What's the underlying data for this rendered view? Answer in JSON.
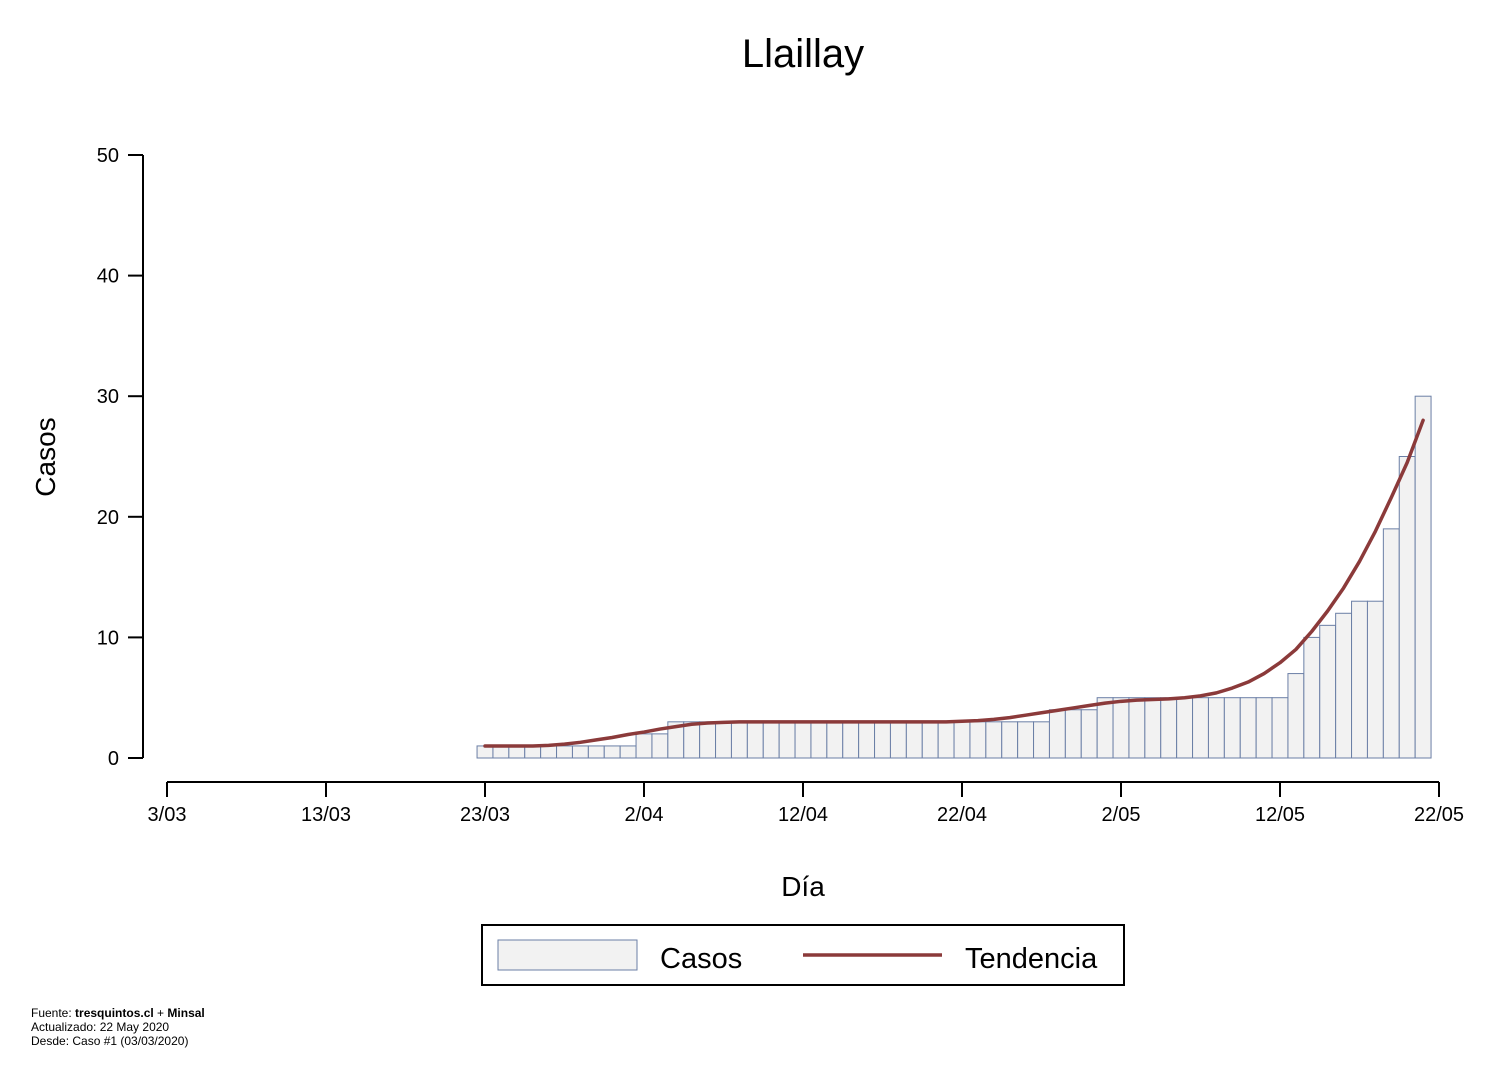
{
  "chart_data": {
    "type": "bar",
    "title": "Llaillay",
    "xlabel": "Día",
    "ylabel": "Casos",
    "ylim": [
      0,
      50
    ],
    "yticks": [
      0,
      10,
      20,
      30,
      40,
      50
    ],
    "xlim": [
      "3/03",
      "22/05"
    ],
    "xticks": [
      "3/03",
      "13/03",
      "23/03",
      "2/04",
      "12/04",
      "22/04",
      "2/05",
      "12/05",
      "22/05"
    ],
    "grid": false,
    "legend_position": "bottom-center",
    "colors": {
      "bar_fill": "#f2f2f2",
      "bar_stroke": "#6b7fa6",
      "trend": "#8b3a3a"
    },
    "x": [
      "23/03",
      "24/03",
      "25/03",
      "26/03",
      "27/03",
      "28/03",
      "29/03",
      "30/03",
      "31/03",
      "1/04",
      "2/04",
      "3/04",
      "4/04",
      "5/04",
      "6/04",
      "7/04",
      "8/04",
      "9/04",
      "10/04",
      "11/04",
      "12/04",
      "13/04",
      "14/04",
      "15/04",
      "16/04",
      "17/04",
      "18/04",
      "19/04",
      "20/04",
      "21/04",
      "22/04",
      "23/04",
      "24/04",
      "25/04",
      "26/04",
      "27/04",
      "28/04",
      "29/04",
      "30/04",
      "1/05",
      "2/05",
      "3/05",
      "4/05",
      "5/05",
      "6/05",
      "7/05",
      "8/05",
      "9/05",
      "10/05",
      "11/05",
      "12/05",
      "13/05",
      "14/05",
      "15/05",
      "16/05",
      "17/05",
      "18/05",
      "19/05",
      "20/05",
      "21/05"
    ],
    "series": [
      {
        "name": "Casos",
        "values": [
          1,
          1,
          1,
          1,
          1,
          1,
          1,
          1,
          1,
          1,
          2,
          2,
          3,
          3,
          3,
          3,
          3,
          3,
          3,
          3,
          3,
          3,
          3,
          3,
          3,
          3,
          3,
          3,
          3,
          3,
          3,
          3,
          3,
          3,
          3,
          3,
          4,
          4,
          4,
          5,
          5,
          5,
          5,
          5,
          5,
          5,
          5,
          5,
          5,
          5,
          5,
          7,
          10,
          11,
          12,
          13,
          13,
          19,
          25,
          30
        ]
      },
      {
        "name": "Tendencia",
        "values": [
          1,
          1,
          1,
          1,
          1.05,
          1.15,
          1.3,
          1.5,
          1.7,
          1.95,
          2.15,
          2.4,
          2.6,
          2.8,
          2.9,
          2.95,
          3,
          3,
          3,
          3,
          3,
          3,
          3,
          3,
          3,
          3,
          3,
          3,
          3,
          3,
          3.05,
          3.1,
          3.2,
          3.35,
          3.55,
          3.75,
          3.95,
          4.15,
          4.35,
          4.55,
          4.7,
          4.8,
          4.85,
          4.9,
          5,
          5.15,
          5.4,
          5.8,
          6.3,
          7,
          7.9,
          9,
          10.5,
          12.2,
          14.1,
          16.3,
          18.8,
          21.6,
          24.5,
          28
        ]
      }
    ]
  },
  "legend": {
    "items": [
      "Casos",
      "Tendencia"
    ]
  },
  "footer": {
    "line1_prefix": "Fuente: ",
    "line1_source": "tresquintos.cl",
    "line1_join": " + ",
    "line1_org": "Minsal",
    "line2": "Actualizado: 22 May 2020",
    "line3": "Desde: Caso #1  (03/03/2020)"
  }
}
